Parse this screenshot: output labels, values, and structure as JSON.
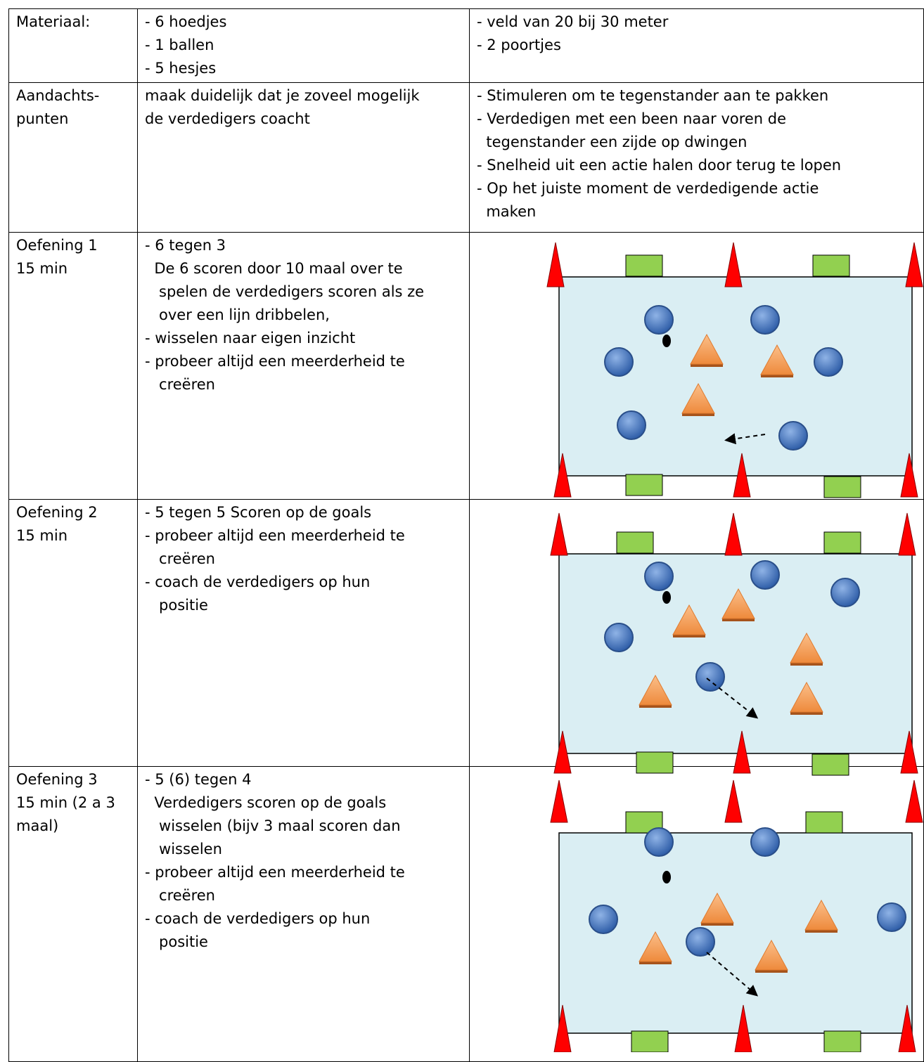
{
  "table": {
    "rows": [
      {
        "label": [
          "Materiaal:"
        ],
        "middle": [
          "- 6 hoedjes",
          "- 1 ballen",
          "- 5 hesjes"
        ],
        "right": [
          "- veld van 20 bij 30 meter",
          "- 2 poortjes"
        ]
      },
      {
        "label": [
          "Aandachts-",
          "punten"
        ],
        "middle": [
          "maak duidelijk dat je zoveel mogelijk",
          "de verdedigers coacht"
        ],
        "right": [
          "- Stimuleren om te tegenstander aan te pakken",
          "- Verdedigen met een been naar voren de",
          "  tegenstander een zijde op dwingen",
          "- Snelheid uit een actie halen door terug te lopen",
          "- Op het juiste moment de verdedigende actie",
          "  maken"
        ]
      },
      {
        "label": [
          "Oefening 1",
          "15 min"
        ],
        "middle": [
          "- 6 tegen 3",
          "  De 6 scoren door 10 maal over te",
          "   spelen de verdedigers scoren als ze",
          "   over een lijn dribbelen,",
          "- wisselen naar eigen inzicht",
          "- probeer altijd een meerderheid te",
          "   creëren"
        ],
        "right": []
      },
      {
        "label": [
          "Oefening 2",
          "15 min"
        ],
        "middle": [
          "- 5 tegen 5 Scoren op de goals",
          "- probeer altijd een meerderheid te",
          "   creëren",
          "- coach de verdedigers op hun",
          "   positie"
        ],
        "right": []
      },
      {
        "label": [
          "Oefening 3",
          "15 min (2 a 3",
          "maal)"
        ],
        "middle": [
          "- 5 (6) tegen 4",
          "  Verdedigers scoren op de goals",
          "   wisselen (bijv 3 maal scoren dan",
          "   wisselen",
          "- probeer altijd een meerderheid te",
          "   creëren",
          "- coach de verdedigers op hun",
          "   positie"
        ],
        "right": []
      }
    ]
  }
}
